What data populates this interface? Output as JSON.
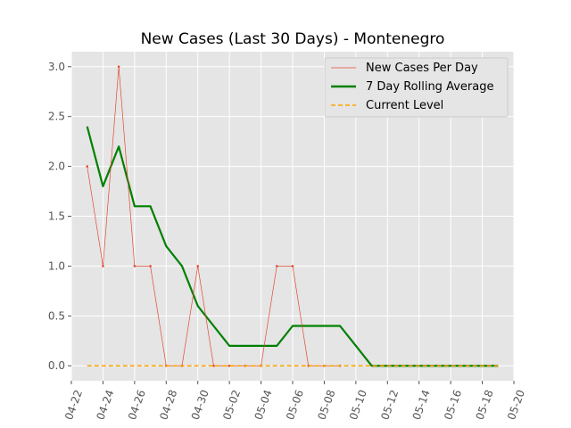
{
  "chart_data": {
    "type": "line",
    "title": "New Cases (Last 30 Days) - Montenegro",
    "xlabel": "",
    "ylabel": "",
    "x_dates": [
      "04-23",
      "04-24",
      "04-25",
      "04-26",
      "04-27",
      "04-28",
      "04-29",
      "04-30",
      "05-01",
      "05-02",
      "05-03",
      "05-04",
      "05-05",
      "05-06",
      "05-07",
      "05-08",
      "05-09",
      "05-10",
      "05-11",
      "05-12",
      "05-13",
      "05-14",
      "05-15",
      "05-16",
      "05-17",
      "05-18",
      "05-19"
    ],
    "x_ticks": [
      "04-22",
      "04-24",
      "04-26",
      "04-28",
      "04-30",
      "05-02",
      "05-04",
      "05-06",
      "05-08",
      "05-10",
      "05-12",
      "05-14",
      "05-16",
      "05-18",
      "05-20"
    ],
    "xlim": [
      "04-22",
      "05-20"
    ],
    "y_ticks": [
      "0.0",
      "0.5",
      "1.0",
      "1.5",
      "2.0",
      "2.5",
      "3.0"
    ],
    "ylim": [
      -0.15,
      3.15
    ],
    "grid": true,
    "legend_position": "top-right",
    "series": [
      {
        "name": "New Cases Per Day",
        "color": "#e24a33",
        "style": "thin-line-with-markers",
        "x": [
          "04-23",
          "04-24",
          "04-25",
          "04-26",
          "04-27",
          "04-28",
          "04-29",
          "04-30",
          "05-01",
          "05-02",
          "05-03",
          "05-04",
          "05-05",
          "05-06",
          "05-07",
          "05-08",
          "05-09"
        ],
        "values": [
          2,
          1,
          3,
          1,
          1,
          0,
          0,
          1,
          0,
          0,
          0,
          0,
          1,
          1,
          0,
          0,
          0
        ]
      },
      {
        "name": "7 Day Rolling Average",
        "color": "#008000",
        "style": "thick-line",
        "x": [
          "04-23",
          "04-24",
          "04-25",
          "04-26",
          "04-27",
          "04-28",
          "04-29",
          "04-30",
          "05-01",
          "05-02",
          "05-03",
          "05-04",
          "05-05",
          "05-06",
          "05-07",
          "05-08",
          "05-09",
          "05-10",
          "05-11",
          "05-12",
          "05-13",
          "05-14",
          "05-15",
          "05-16",
          "05-17",
          "05-18",
          "05-19"
        ],
        "values": [
          2.4,
          1.8,
          2.2,
          1.6,
          1.6,
          1.2,
          1.0,
          0.6,
          0.4,
          0.2,
          0.2,
          0.2,
          0.2,
          0.4,
          0.4,
          0.4,
          0.4,
          0.2,
          0,
          0,
          0,
          0,
          0,
          0,
          0,
          0,
          0
        ]
      },
      {
        "name": "Current Level",
        "color": "#ffa500",
        "style": "dashed",
        "x": [
          "04-23",
          "05-19"
        ],
        "values": [
          0,
          0
        ]
      }
    ]
  }
}
